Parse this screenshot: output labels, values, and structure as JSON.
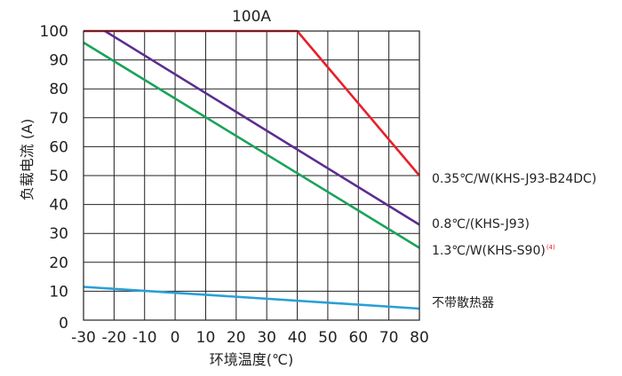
{
  "chart_data": {
    "type": "line",
    "title": "100A",
    "xlabel": "环境温度(℃)",
    "ylabel": "负载电流 (A)",
    "xlim": [
      -30,
      80
    ],
    "ylim": [
      0,
      100
    ],
    "x_ticks": [
      -30,
      -20,
      -10,
      0,
      10,
      20,
      30,
      40,
      50,
      60,
      70,
      80
    ],
    "y_ticks": [
      0,
      10,
      20,
      30,
      40,
      50,
      60,
      70,
      80,
      90,
      100
    ],
    "grid": true,
    "legend_placement": "right",
    "series": [
      {
        "name": "0.35℃/W(KHS-J93-B24DC)",
        "color": "#e8202a",
        "x": [
          -30,
          40,
          80
        ],
        "y": [
          100,
          100,
          50
        ]
      },
      {
        "name": "0.8℃/(KHS-J93)",
        "color": "#5b2d91",
        "x": [
          -23,
          80
        ],
        "y": [
          100,
          33
        ]
      },
      {
        "name": "1.3℃/W(KHS-S90)",
        "note": "(4)",
        "color": "#1aa35a",
        "x": [
          -30,
          80
        ],
        "y": [
          96,
          25
        ]
      },
      {
        "name": "不带散热器",
        "color": "#2a9fd6",
        "x": [
          -30,
          80
        ],
        "y": [
          11.5,
          4
        ]
      }
    ]
  }
}
